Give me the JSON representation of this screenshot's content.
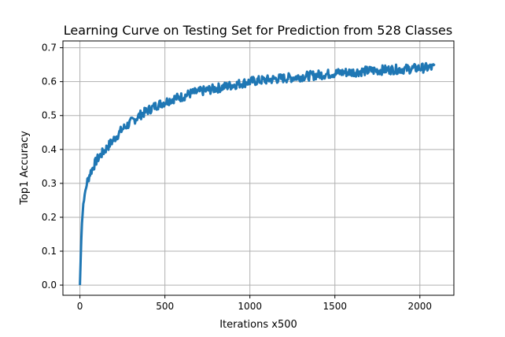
{
  "chart_data": {
    "type": "line",
    "title": "Learning Curve on Testing Set for Prediction from 528 Classes",
    "xlabel": "Iterations x500",
    "ylabel": "Top1 Accuracy",
    "xlim": [
      -100,
      2200
    ],
    "ylim": [
      -0.03,
      0.72
    ],
    "xticks": [
      0,
      500,
      1000,
      1500,
      2000
    ],
    "yticks": [
      0.0,
      0.1,
      0.2,
      0.3,
      0.4,
      0.5,
      0.6,
      0.7
    ],
    "xtick_labels": [
      "0",
      "500",
      "1000",
      "1500",
      "2000"
    ],
    "ytick_labels": [
      "0.0",
      "0.1",
      "0.2",
      "0.3",
      "0.4",
      "0.5",
      "0.6",
      "0.7"
    ],
    "grid": true,
    "series": [
      {
        "color": "#1f77b4",
        "x": [
          0,
          10,
          20,
          40,
          60,
          80,
          100,
          150,
          200,
          250,
          300,
          350,
          400,
          450,
          500,
          550,
          600,
          650,
          700,
          750,
          800,
          850,
          900,
          950,
          1000,
          1050,
          1100,
          1150,
          1200,
          1250,
          1300,
          1350,
          1400,
          1450,
          1500,
          1550,
          1600,
          1650,
          1700,
          1750,
          1800,
          1850,
          1900,
          1950,
          2000,
          2050,
          2090
        ],
        "y": [
          0.0,
          0.17,
          0.24,
          0.3,
          0.33,
          0.35,
          0.37,
          0.4,
          0.43,
          0.46,
          0.48,
          0.5,
          0.515,
          0.53,
          0.54,
          0.55,
          0.555,
          0.565,
          0.57,
          0.575,
          0.58,
          0.585,
          0.59,
          0.595,
          0.6,
          0.603,
          0.605,
          0.608,
          0.61,
          0.612,
          0.615,
          0.617,
          0.62,
          0.622,
          0.625,
          0.627,
          0.628,
          0.63,
          0.632,
          0.633,
          0.635,
          0.636,
          0.637,
          0.638,
          0.64,
          0.641,
          0.642
        ]
      }
    ]
  }
}
